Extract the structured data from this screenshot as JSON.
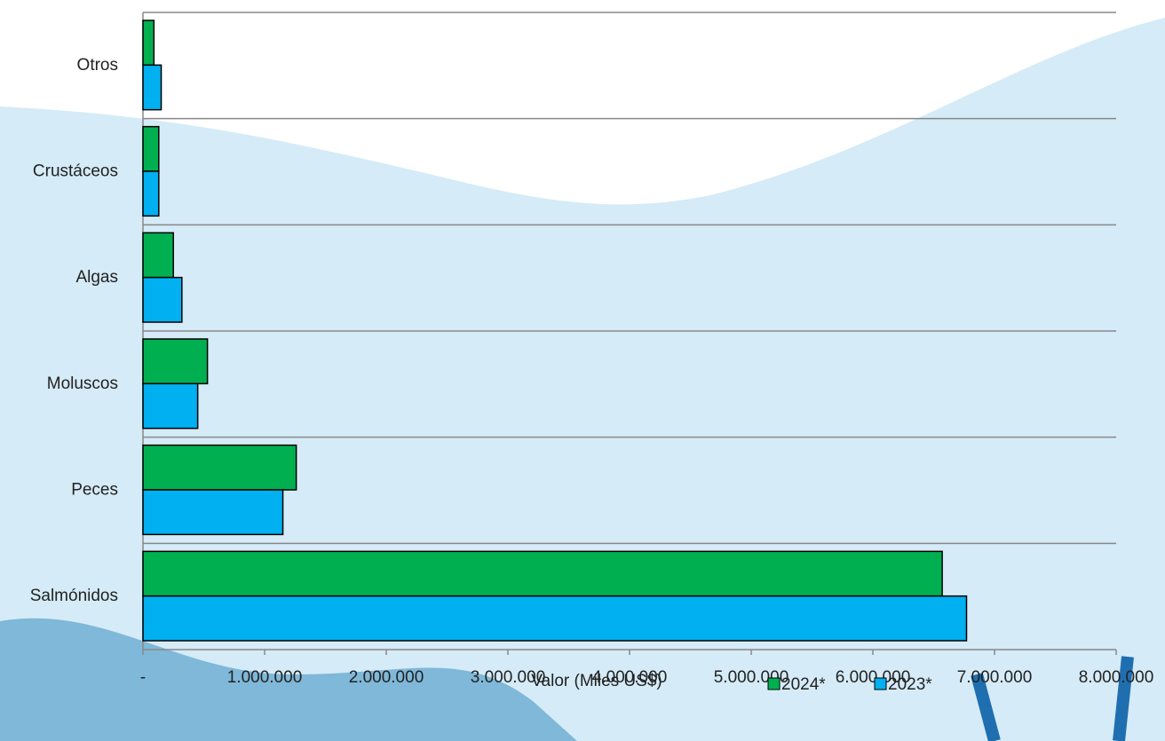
{
  "chart_data": {
    "type": "hbar",
    "categories": [
      "Otros",
      "Crustáceos",
      "Algas",
      "Moluscos",
      "Peces",
      "Salmónidos"
    ],
    "series": [
      {
        "name": "2024*",
        "color": "#00b050",
        "values": [
          90000,
          130000,
          250000,
          530000,
          1260000,
          6570000
        ]
      },
      {
        "name": "2023*",
        "color": "#00b0f0",
        "values": [
          150000,
          130000,
          320000,
          450000,
          1150000,
          6770000
        ]
      }
    ],
    "xlabel": "Valor (Miles US$)",
    "xlim": [
      0,
      8000000
    ],
    "xticks": [
      {
        "value": 0,
        "label": "-"
      },
      {
        "value": 1000000,
        "label": "1.000.000"
      },
      {
        "value": 2000000,
        "label": "2.000.000"
      },
      {
        "value": 3000000,
        "label": "3.000.000"
      },
      {
        "value": 4000000,
        "label": "4.000.000"
      },
      {
        "value": 5000000,
        "label": "5.000.000"
      },
      {
        "value": 6000000,
        "label": "6.000.000"
      },
      {
        "value": 7000000,
        "label": "7.000.000"
      },
      {
        "value": 8000000,
        "label": "8.000.000"
      }
    ],
    "legend": "bottom"
  }
}
